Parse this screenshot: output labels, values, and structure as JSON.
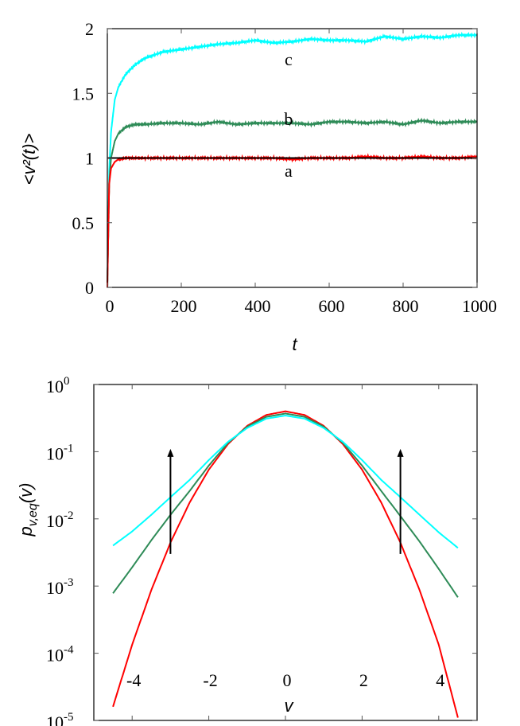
{
  "chart_data": [
    {
      "type": "line",
      "xlabel": "t",
      "ylabel": "<v²(t)>",
      "xlim": [
        0,
        1000
      ],
      "ylim": [
        0,
        2
      ],
      "xticks": [
        "0",
        "200",
        "400",
        "600",
        "800",
        "1000"
      ],
      "yticks": [
        "0",
        "0.5",
        "1",
        "1.5",
        "2"
      ],
      "grid": false,
      "colors": {
        "a": "#ff0000",
        "b": "#2e8b57",
        "c": "#00ffff",
        "reference": "#000000"
      },
      "reference_line_y": 1,
      "series": [
        {
          "label": "a",
          "label_at": [
            490,
            0.9
          ],
          "x": [
            0,
            5,
            10,
            20,
            30,
            50,
            75,
            100,
            150,
            200,
            250,
            300,
            350,
            400,
            450,
            500,
            550,
            600,
            650,
            700,
            750,
            800,
            850,
            900,
            950,
            1000
          ],
          "y": [
            0,
            0.8,
            0.92,
            0.97,
            0.99,
            1.0,
            1.0,
            1.0,
            1.0,
            1.0,
            1.0,
            1.0,
            1.0,
            1.0,
            1.0,
            0.99,
            1.0,
            1.0,
            1.0,
            1.01,
            1.0,
            1.0,
            1.01,
            1.0,
            1.0,
            1.01
          ]
        },
        {
          "label": "b",
          "label_at": [
            490,
            1.3
          ],
          "x": [
            0,
            5,
            10,
            20,
            30,
            50,
            75,
            100,
            150,
            200,
            250,
            300,
            350,
            400,
            450,
            500,
            550,
            600,
            650,
            700,
            750,
            800,
            850,
            900,
            950,
            1000
          ],
          "y": [
            0,
            0.8,
            1.0,
            1.13,
            1.19,
            1.24,
            1.26,
            1.26,
            1.27,
            1.27,
            1.26,
            1.28,
            1.26,
            1.27,
            1.27,
            1.27,
            1.26,
            1.28,
            1.28,
            1.27,
            1.28,
            1.26,
            1.29,
            1.27,
            1.28,
            1.28
          ]
        },
        {
          "label": "c",
          "label_at": [
            490,
            1.76
          ],
          "x": [
            0,
            5,
            10,
            20,
            30,
            50,
            75,
            100,
            150,
            200,
            250,
            300,
            350,
            400,
            450,
            500,
            550,
            600,
            650,
            700,
            750,
            800,
            850,
            900,
            950,
            1000
          ],
          "y": [
            0,
            0.9,
            1.2,
            1.45,
            1.55,
            1.65,
            1.72,
            1.77,
            1.82,
            1.84,
            1.86,
            1.88,
            1.89,
            1.91,
            1.89,
            1.9,
            1.92,
            1.91,
            1.91,
            1.9,
            1.94,
            1.92,
            1.94,
            1.93,
            1.95,
            1.95
          ]
        }
      ]
    },
    {
      "type": "line",
      "xlabel": "v",
      "ylabel": "p",
      "ylabel_sub": "v,eq",
      "ylabel_tail": "(v)",
      "xlim": [
        -5,
        5
      ],
      "ylim": [
        1e-05,
        1
      ],
      "yscale": "log",
      "xticks": [
        "-4",
        "-2",
        "0",
        "2",
        "4"
      ],
      "yticks": [
        {
          "base": "10",
          "exp": "0"
        },
        {
          "base": "10",
          "exp": "-1"
        },
        {
          "base": "10",
          "exp": "-2"
        },
        {
          "base": "10",
          "exp": "-3"
        },
        {
          "base": "10",
          "exp": "-4"
        },
        {
          "base": "10",
          "exp": "-5"
        }
      ],
      "grid": false,
      "colors": {
        "red": "#ff0000",
        "green": "#2e8b57",
        "cyan": "#00ffff"
      },
      "x": [
        -4.5,
        -4,
        -3.5,
        -3,
        -2.5,
        -2,
        -1.5,
        -1,
        -0.5,
        0,
        0.5,
        1,
        1.5,
        2,
        2.5,
        3,
        3.5,
        4,
        4.5
      ],
      "series": [
        {
          "color": "#ff0000",
          "y": [
            1.6e-05,
            0.000134,
            0.00087,
            0.00443,
            0.0175,
            0.054,
            0.1295,
            0.242,
            0.352,
            0.399,
            0.352,
            0.242,
            0.1295,
            0.054,
            0.0175,
            0.00443,
            0.00087,
            0.000134,
            1.1e-05
          ]
        },
        {
          "color": "#2e8b57",
          "y": [
            0.00078,
            0.0019,
            0.0048,
            0.0115,
            0.026,
            0.062,
            0.135,
            0.235,
            0.33,
            0.37,
            0.33,
            0.235,
            0.135,
            0.062,
            0.026,
            0.011,
            0.0046,
            0.0018,
            0.00068
          ]
        },
        {
          "color": "#00ffff",
          "y": [
            0.004,
            0.0065,
            0.0115,
            0.021,
            0.038,
            0.075,
            0.14,
            0.225,
            0.31,
            0.345,
            0.31,
            0.225,
            0.14,
            0.075,
            0.038,
            0.021,
            0.0115,
            0.0063,
            0.0037
          ]
        }
      ],
      "arrows": [
        {
          "x": -3,
          "from": 0.003,
          "to": 0.11
        },
        {
          "x": 3,
          "from": 0.003,
          "to": 0.11
        }
      ]
    }
  ]
}
